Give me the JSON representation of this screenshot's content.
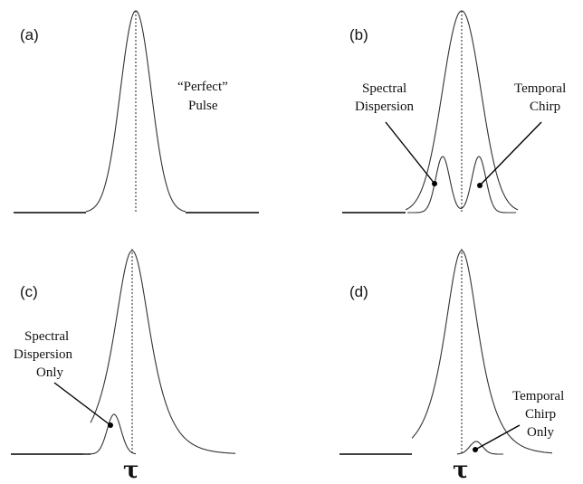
{
  "panels": [
    {
      "label": "(a)",
      "annotations": [
        "“Perfect”",
        "Pulse"
      ],
      "axis_symbol": ""
    },
    {
      "label": "(b)",
      "annotations": [
        "Spectral",
        "Dispersion",
        "Temporal",
        "Chirp"
      ],
      "axis_symbol": ""
    },
    {
      "label": "(c)",
      "annotations": [
        "Spectral",
        "Dispersion",
        "Only"
      ],
      "axis_symbol": "τ"
    },
    {
      "label": "(d)",
      "annotations": [
        "Temporal",
        "Chirp",
        "Only"
      ],
      "axis_symbol": "τ"
    }
  ]
}
